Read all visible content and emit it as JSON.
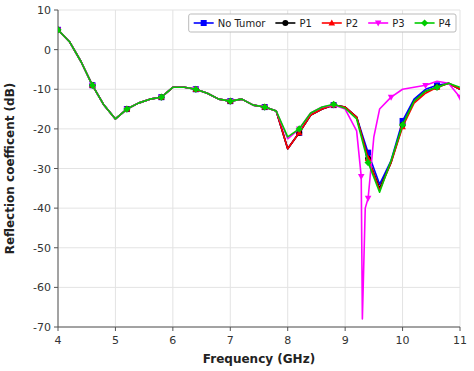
{
  "chart_data": {
    "type": "line",
    "xlabel": "Frequency (GHz)",
    "ylabel": "Reflection coefficent (dB)",
    "xlim": [
      4,
      11
    ],
    "ylim": [
      -70,
      10
    ],
    "xticks": [
      4,
      5,
      6,
      7,
      8,
      9,
      10,
      11
    ],
    "yticks": [
      -70,
      -60,
      -50,
      -40,
      -30,
      -20,
      -10,
      0,
      10
    ],
    "grid": true,
    "legend": "upper right",
    "series": [
      {
        "name": "No Tumor",
        "color": "#0000FF",
        "marker": "square",
        "x": [
          4.0,
          4.2,
          4.4,
          4.6,
          4.8,
          5.0,
          5.2,
          5.4,
          5.6,
          5.8,
          6.0,
          6.2,
          6.4,
          6.6,
          6.8,
          7.0,
          7.2,
          7.4,
          7.6,
          7.8,
          8.0,
          8.2,
          8.4,
          8.6,
          8.8,
          9.0,
          9.2,
          9.4,
          9.6,
          9.8,
          10.0,
          10.2,
          10.4,
          10.6,
          10.8,
          11.0
        ],
        "values": [
          5.0,
          2.0,
          -3.0,
          -9.0,
          -14.0,
          -17.5,
          -15.0,
          -13.5,
          -12.5,
          -12.0,
          -9.5,
          -9.5,
          -10.0,
          -11.0,
          -12.5,
          -13.0,
          -12.5,
          -14.0,
          -14.5,
          -15.5,
          -25.0,
          -21.0,
          -16.5,
          -15.0,
          -14.0,
          -14.5,
          -17.0,
          -26.0,
          -34.0,
          -28.0,
          -18.0,
          -12.5,
          -10.0,
          -9.0,
          -8.5,
          -10.0
        ]
      },
      {
        "name": "P1",
        "color": "#000000",
        "marker": "circle",
        "x": [
          4.0,
          4.2,
          4.4,
          4.6,
          4.8,
          5.0,
          5.2,
          5.4,
          5.6,
          5.8,
          6.0,
          6.2,
          6.4,
          6.6,
          6.8,
          7.0,
          7.2,
          7.4,
          7.6,
          7.8,
          8.0,
          8.2,
          8.4,
          8.6,
          8.8,
          9.0,
          9.2,
          9.4,
          9.6,
          9.8,
          10.0,
          10.2,
          10.4,
          10.6,
          10.8,
          11.0
        ],
        "values": [
          5.0,
          2.0,
          -3.0,
          -9.0,
          -14.0,
          -17.5,
          -15.0,
          -13.5,
          -12.5,
          -12.0,
          -9.5,
          -9.5,
          -10.0,
          -11.0,
          -12.5,
          -13.0,
          -12.5,
          -14.0,
          -14.5,
          -15.5,
          -25.0,
          -21.0,
          -16.5,
          -15.0,
          -14.0,
          -14.5,
          -17.0,
          -27.5,
          -35.0,
          -28.5,
          -19.0,
          -13.0,
          -10.5,
          -9.5,
          -8.5,
          -10.0
        ]
      },
      {
        "name": "P2",
        "color": "#FF0000",
        "marker": "triangle-up",
        "x": [
          4.0,
          4.2,
          4.4,
          4.6,
          4.8,
          5.0,
          5.2,
          5.4,
          5.6,
          5.8,
          6.0,
          6.2,
          6.4,
          6.6,
          6.8,
          7.0,
          7.2,
          7.4,
          7.6,
          7.8,
          8.0,
          8.2,
          8.4,
          8.6,
          8.8,
          9.0,
          9.2,
          9.4,
          9.6,
          9.8,
          10.0,
          10.2,
          10.4,
          10.6,
          10.8,
          11.0
        ],
        "values": [
          5.0,
          2.0,
          -3.0,
          -9.0,
          -14.0,
          -17.5,
          -15.0,
          -13.5,
          -12.5,
          -12.0,
          -9.5,
          -9.5,
          -10.0,
          -11.0,
          -12.5,
          -13.0,
          -12.5,
          -14.0,
          -14.5,
          -15.5,
          -25.0,
          -21.0,
          -16.5,
          -15.0,
          -14.0,
          -14.5,
          -17.0,
          -27.5,
          -35.5,
          -28.5,
          -19.5,
          -13.5,
          -11.0,
          -9.5,
          -8.5,
          -10.0
        ]
      },
      {
        "name": "P3",
        "color": "#FF00FF",
        "marker": "triangle-down",
        "x": [
          4.0,
          4.2,
          4.4,
          4.6,
          4.8,
          5.0,
          5.2,
          5.4,
          5.6,
          5.8,
          6.0,
          6.2,
          6.4,
          6.6,
          6.8,
          7.0,
          7.2,
          7.4,
          7.6,
          7.8,
          8.0,
          8.2,
          8.4,
          8.6,
          8.8,
          9.0,
          9.2,
          9.28,
          9.3,
          9.35,
          9.4,
          9.5,
          9.6,
          9.8,
          10.0,
          10.2,
          10.4,
          10.6,
          10.8,
          11.0
        ],
        "values": [
          5.0,
          2.0,
          -3.0,
          -9.0,
          -14.0,
          -17.5,
          -15.0,
          -13.5,
          -12.5,
          -12.0,
          -9.5,
          -9.5,
          -10.0,
          -11.0,
          -12.5,
          -13.0,
          -12.5,
          -14.0,
          -14.5,
          -15.5,
          -22.5,
          -20.0,
          -16.0,
          -14.5,
          -14.0,
          -15.0,
          -20.5,
          -32.0,
          -68.0,
          -40.0,
          -37.5,
          -22.0,
          -15.0,
          -12.0,
          -10.0,
          -9.5,
          -9.0,
          -8.0,
          -8.5,
          -12.0
        ]
      },
      {
        "name": "P4",
        "color": "#00CC00",
        "marker": "diamond",
        "x": [
          4.0,
          4.2,
          4.4,
          4.6,
          4.8,
          5.0,
          5.2,
          5.4,
          5.6,
          5.8,
          6.0,
          6.2,
          6.4,
          6.6,
          6.8,
          7.0,
          7.2,
          7.4,
          7.6,
          7.8,
          8.0,
          8.2,
          8.4,
          8.6,
          8.8,
          9.0,
          9.2,
          9.4,
          9.6,
          9.8,
          10.0,
          10.2,
          10.4,
          10.6,
          10.8,
          11.0
        ],
        "values": [
          5.0,
          2.0,
          -3.0,
          -9.0,
          -14.0,
          -17.5,
          -15.0,
          -13.5,
          -12.5,
          -12.0,
          -9.5,
          -9.5,
          -10.0,
          -11.0,
          -12.5,
          -13.0,
          -12.5,
          -14.0,
          -14.5,
          -15.5,
          -22.0,
          -20.0,
          -16.0,
          -14.5,
          -13.8,
          -14.8,
          -17.5,
          -28.5,
          -36.0,
          -28.0,
          -19.0,
          -13.0,
          -10.5,
          -9.5,
          -8.5,
          -9.5
        ]
      }
    ]
  }
}
